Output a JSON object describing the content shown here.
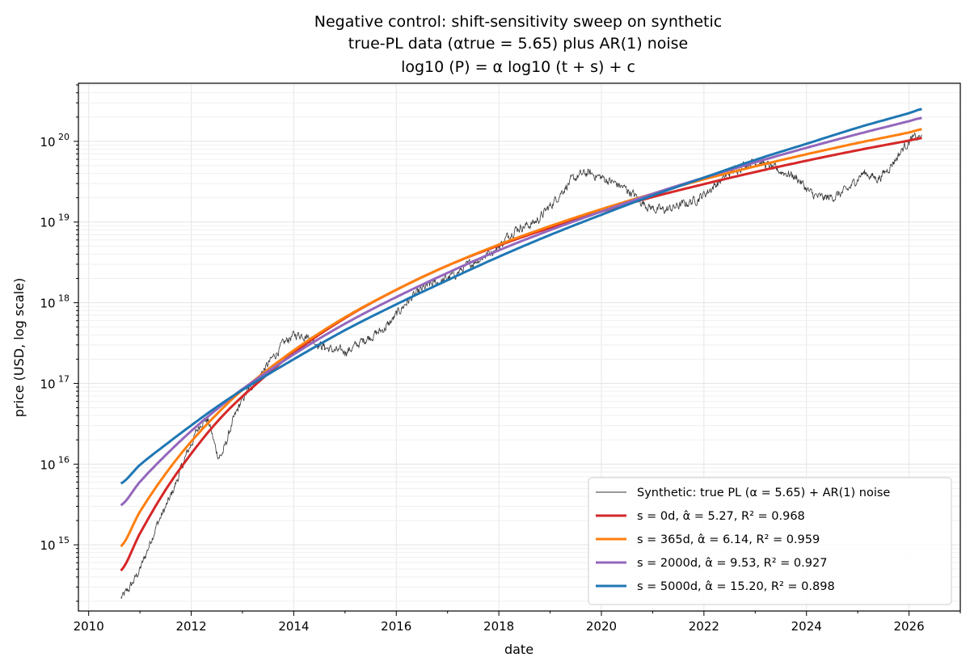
{
  "chart_data": {
    "type": "line",
    "title_lines": [
      "Negative control: shift-sensitivity sweep on synthetic",
      "true-PL data (αtrue = 5.65) plus AR(1) noise",
      "log10 (P) = α log10 (t + s) + c"
    ],
    "xlabel": "date",
    "ylabel": "price (USD, log scale)",
    "x_scale": "linear (years)",
    "y_scale": "log10",
    "xlim": [
      2009.8,
      2027.0
    ],
    "ylim_log10": [
      14.18,
      20.72
    ],
    "x_ticks": [
      2010,
      2012,
      2014,
      2016,
      2018,
      2020,
      2022,
      2024,
      2026
    ],
    "x_tick_labels": [
      "2010",
      "2012",
      "2014",
      "2016",
      "2018",
      "2020",
      "2022",
      "2024",
      "2026"
    ],
    "y_ticks_log10": [
      15,
      16,
      17,
      18,
      19,
      20
    ],
    "y_tick_labels": [
      "10",
      "10",
      "10",
      "10",
      "10",
      "10"
    ],
    "y_tick_exponents": [
      "15",
      "16",
      "17",
      "18",
      "19",
      "20"
    ],
    "grid": true,
    "legend_position": "lower-right",
    "series": [
      {
        "name": "Synthetic: true PL (α = 5.65) + AR(1) noise",
        "color": "#333333",
        "style": "thin-noisy",
        "x": [
          2010.63,
          2011.0,
          2011.3,
          2011.6,
          2012.0,
          2012.3,
          2012.55,
          2012.8,
          2013.0,
          2013.4,
          2013.9,
          2014.2,
          2014.6,
          2015.0,
          2015.4,
          2015.8,
          2016.2,
          2016.6,
          2017.0,
          2017.5,
          2018.0,
          2018.3,
          2018.7,
          2019.0,
          2019.4,
          2019.7,
          2020.0,
          2020.5,
          2020.9,
          2021.2,
          2021.5,
          2021.9,
          2022.3,
          2022.6,
          2023.0,
          2023.4,
          2023.8,
          2024.1,
          2024.4,
          2024.8,
          2025.1,
          2025.4,
          2025.7,
          2026.0,
          2026.25
        ],
        "log10_y": [
          14.34,
          14.7,
          15.2,
          15.6,
          16.25,
          16.55,
          16.1,
          16.5,
          16.8,
          17.15,
          17.55,
          17.6,
          17.45,
          17.4,
          17.55,
          17.7,
          18.0,
          18.2,
          18.3,
          18.5,
          18.7,
          18.9,
          19.0,
          19.2,
          19.5,
          19.6,
          19.55,
          19.4,
          19.2,
          19.15,
          19.2,
          19.3,
          19.5,
          19.65,
          19.75,
          19.65,
          19.55,
          19.35,
          19.3,
          19.4,
          19.6,
          19.55,
          19.75,
          20.0,
          20.05
        ]
      },
      {
        "name": "s = 0d, α̂ = 5.27, R² = 0.968",
        "color": "#d62728",
        "x": [
          2010.63,
          2011.0,
          2011.5,
          2012.0,
          2012.5,
          2013.0,
          2014.0,
          2015.0,
          2016.0,
          2017.0,
          2018.0,
          2019.0,
          2020.0,
          2021.0,
          2022.0,
          2023.0,
          2024.0,
          2025.0,
          2026.0,
          2026.25
        ],
        "log10_y": [
          14.68,
          15.14,
          15.68,
          16.13,
          16.52,
          16.84,
          17.38,
          17.81,
          18.16,
          18.46,
          18.71,
          18.93,
          19.13,
          19.31,
          19.47,
          19.62,
          19.76,
          19.89,
          20.01,
          20.04
        ]
      },
      {
        "name": "s = 365d, α̂ = 6.14, R² = 0.959",
        "color": "#ff7f0e",
        "x": [
          2010.63,
          2011.0,
          2011.5,
          2012.0,
          2012.5,
          2013.0,
          2014.0,
          2015.0,
          2016.0,
          2017.0,
          2018.0,
          2019.0,
          2020.0,
          2021.0,
          2022.0,
          2023.0,
          2024.0,
          2025.0,
          2026.0,
          2026.25
        ],
        "log10_y": [
          14.98,
          15.41,
          15.88,
          16.28,
          16.62,
          16.92,
          17.41,
          17.82,
          18.16,
          18.46,
          18.72,
          18.95,
          19.16,
          19.35,
          19.53,
          19.69,
          19.84,
          19.98,
          20.11,
          20.15
        ]
      },
      {
        "name": "s = 2000d, α̂ = 9.53, R² = 0.927",
        "color": "#9467bd",
        "x": [
          2010.63,
          2011.0,
          2011.5,
          2012.0,
          2012.5,
          2013.0,
          2014.0,
          2015.0,
          2016.0,
          2017.0,
          2018.0,
          2019.0,
          2020.0,
          2021.0,
          2022.0,
          2023.0,
          2024.0,
          2025.0,
          2026.0,
          2026.25
        ],
        "log10_y": [
          15.49,
          15.78,
          16.11,
          16.41,
          16.68,
          16.93,
          17.36,
          17.74,
          18.07,
          18.37,
          18.65,
          18.9,
          19.13,
          19.35,
          19.55,
          19.74,
          19.92,
          20.09,
          20.25,
          20.29
        ]
      },
      {
        "name": "s = 5000d, α̂ = 15.20, R² = 0.898",
        "color": "#1f77b4",
        "x": [
          2010.63,
          2011.0,
          2011.5,
          2012.0,
          2012.5,
          2013.0,
          2014.0,
          2015.0,
          2016.0,
          2017.0,
          2018.0,
          2019.0,
          2020.0,
          2021.0,
          2022.0,
          2023.0,
          2024.0,
          2025.0,
          2026.0,
          2026.25
        ],
        "log10_y": [
          15.76,
          15.99,
          16.24,
          16.48,
          16.71,
          16.92,
          17.3,
          17.66,
          17.98,
          18.28,
          18.57,
          18.84,
          19.09,
          19.33,
          19.55,
          19.77,
          19.97,
          20.17,
          20.35,
          20.4
        ]
      }
    ]
  }
}
